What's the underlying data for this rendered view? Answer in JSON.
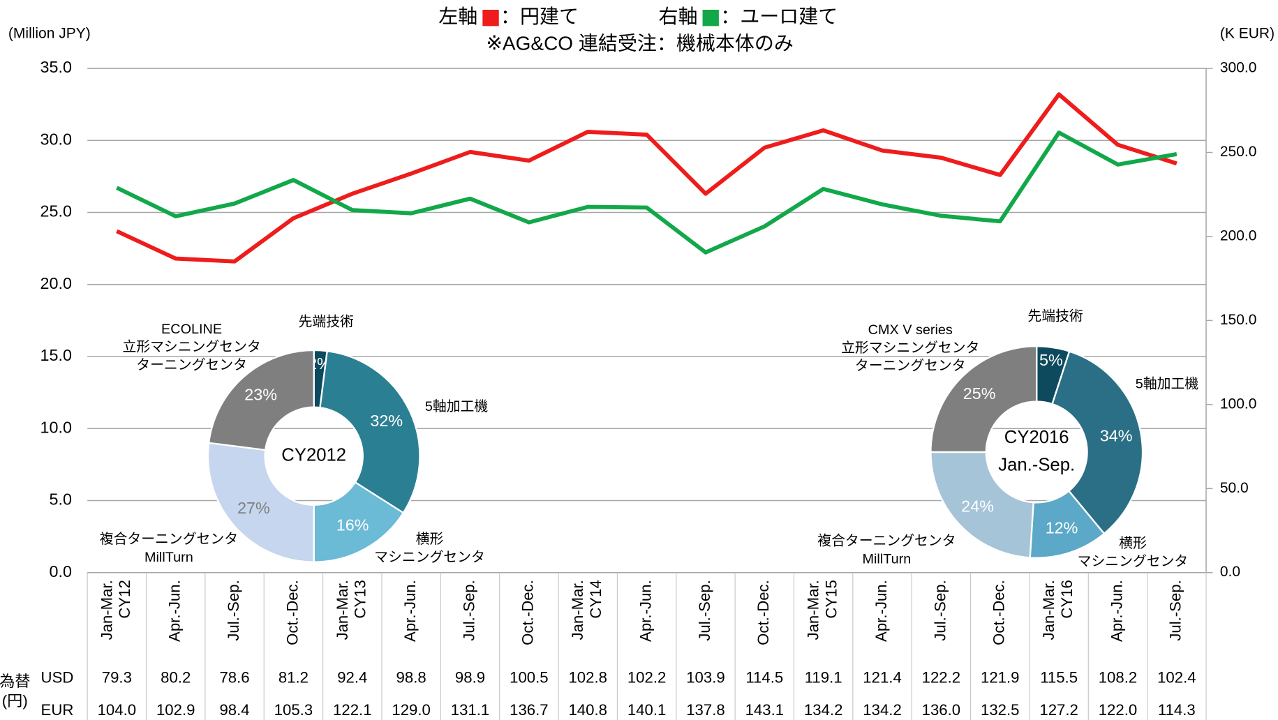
{
  "chart_data": [
    {
      "type": "line",
      "title": "※AG&CO 連結受注：機械本体のみ",
      "ylabel": "(Million JPY)",
      "y2label": "(K EUR)",
      "categories": [
        [
          "Jan-Mar.",
          "CY12"
        ],
        [
          "Apr.-Jun."
        ],
        [
          "Jul.-Sep."
        ],
        [
          "Oct.-Dec."
        ],
        [
          "Jan-Mar.",
          "CY13"
        ],
        [
          "Apr.-Jun."
        ],
        [
          "Jul.-Sep."
        ],
        [
          "Oct.-Dec."
        ],
        [
          "Jan-Mar.",
          "CY14"
        ],
        [
          "Apr.-Jun."
        ],
        [
          "Jul.-Sep."
        ],
        [
          "Oct.-Dec."
        ],
        [
          "Jan-Mar.",
          "CY15"
        ],
        [
          "Apr.-Jun."
        ],
        [
          "Jul.-Sep."
        ],
        [
          "Oct.-Dec."
        ],
        [
          "Jan-Mar.",
          "CY16"
        ],
        [
          "Apr.-Jun."
        ],
        [
          "Jul.-Sep."
        ]
      ],
      "series": [
        {
          "axis_label": "左軸",
          "name": "：円建て",
          "color": "#ee1c1c",
          "values": [
            23.7,
            21.8,
            21.6,
            24.6,
            26.3,
            27.7,
            29.2,
            28.6,
            30.6,
            30.4,
            26.3,
            29.5,
            30.7,
            29.3,
            28.8,
            27.6,
            33.2,
            29.7,
            28.4
          ]
        },
        {
          "axis_label": "右軸",
          "name": "：ユーロ建て",
          "color": "#12a84a",
          "axis": "y2",
          "values": [
            229,
            212,
            219.6,
            233.6,
            215.7,
            213.8,
            222.5,
            208.4,
            217.6,
            217.2,
            190.5,
            206,
            228.3,
            219.1,
            212.3,
            209,
            261.8,
            242.8,
            249
          ]
        }
      ],
      "ylim": [
        0,
        35
      ],
      "yticks": [
        {
          "value": 0,
          "label": "0.0"
        },
        {
          "value": 5,
          "label": "5.0"
        },
        {
          "value": 10,
          "label": "10.0"
        },
        {
          "value": 15,
          "label": "15.0"
        },
        {
          "value": 20,
          "label": "20.0"
        },
        {
          "value": 25,
          "label": "25.0"
        },
        {
          "value": 30,
          "label": "30.0"
        },
        {
          "value": 35,
          "label": "35.0"
        }
      ],
      "y2lim": [
        0,
        300
      ],
      "y2ticks": [
        {
          "value": 0,
          "label": "0.0"
        },
        {
          "value": 50,
          "label": "50.0"
        },
        {
          "value": 100,
          "label": "100.0"
        },
        {
          "value": 150,
          "label": "150.0"
        },
        {
          "value": 200,
          "label": "200.0"
        },
        {
          "value": 250,
          "label": "250.0"
        },
        {
          "value": 300,
          "label": "300.0"
        }
      ],
      "grid": true
    },
    {
      "type": "donut",
      "center_label": [
        "CY2012"
      ],
      "categories": [
        [
          "先端技術"
        ],
        [
          "5軸加工機"
        ],
        [
          "横形",
          "マシニングセンタ"
        ],
        [
          "複合ターニングセンタ",
          "MillTurn"
        ],
        [
          "ECOLINE",
          "立形マシニングセンタ",
          "ターニングセンタ"
        ]
      ],
      "values": [
        2,
        32,
        16,
        27,
        23
      ],
      "value_labels": [
        "2%",
        "32%",
        "16%",
        "27%",
        "23%"
      ],
      "colors": [
        "#0d4a5e",
        "#2a7f93",
        "#6bbad6",
        "#c5d6ee",
        "#7f7f7f"
      ]
    },
    {
      "type": "donut",
      "center_label": [
        "CY2016",
        "Jan.-Sep."
      ],
      "categories": [
        [
          "先端技術"
        ],
        [
          "5軸加工機"
        ],
        [
          "横形",
          "マシニングセンタ"
        ],
        [
          "複合ターニングセンタ",
          "MillTurn"
        ],
        [
          "CMX V series",
          "立形マシニングセンタ",
          "ターニングセンタ"
        ]
      ],
      "values": [
        5,
        34,
        12,
        24,
        25
      ],
      "value_labels": [
        "5%",
        "34%",
        "12%",
        "24%",
        "25%"
      ],
      "colors": [
        "#0d4a5e",
        "#2a6f85",
        "#5ba8c8",
        "#a6c4d8",
        "#7f7f7f"
      ]
    }
  ],
  "fx_table": {
    "label": [
      "為替",
      "(円)"
    ],
    "rows": [
      {
        "name": "USD",
        "values": [
          "79.3",
          "80.2",
          "78.6",
          "81.2",
          "92.4",
          "98.8",
          "98.9",
          "100.5",
          "102.8",
          "102.2",
          "103.9",
          "114.5",
          "119.1",
          "121.4",
          "122.2",
          "121.9",
          "115.5",
          "108.2",
          "102.4"
        ]
      },
      {
        "name": "EUR",
        "values": [
          "104.0",
          "102.9",
          "98.4",
          "105.3",
          "122.1",
          "129.0",
          "131.1",
          "136.7",
          "140.8",
          "140.1",
          "137.8",
          "143.1",
          "134.2",
          "134.2",
          "136.0",
          "132.5",
          "127.2",
          "122.0",
          "114.3"
        ]
      }
    ]
  }
}
